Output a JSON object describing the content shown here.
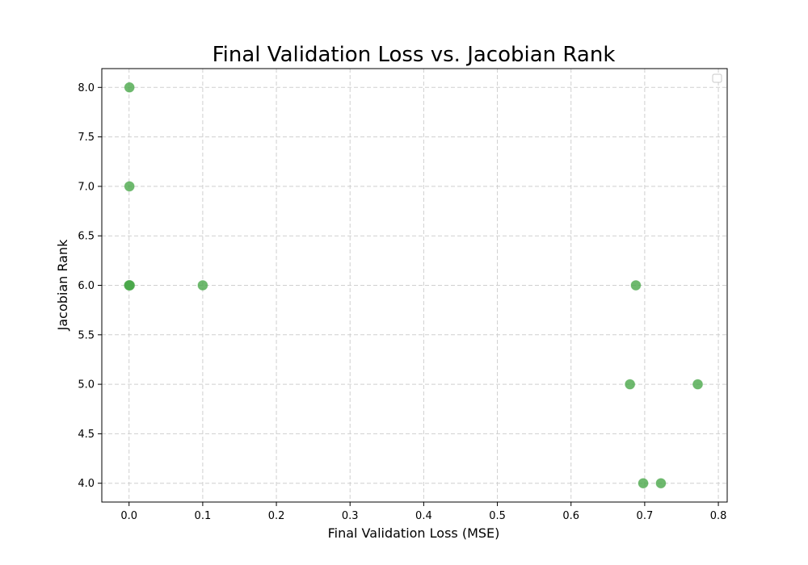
{
  "chart_data": {
    "type": "scatter",
    "title": "Final Validation Loss vs. Jacobian Rank",
    "xlabel": "Final Validation Loss (MSE)",
    "ylabel": "Jacobian Rank",
    "xlim": [
      -0.037,
      0.812
    ],
    "ylim": [
      3.81,
      8.19
    ],
    "xticks": [
      "0.0",
      "0.1",
      "0.2",
      "0.3",
      "0.4",
      "0.5",
      "0.6",
      "0.7",
      "0.8"
    ],
    "yticks": [
      "4.0",
      "4.5",
      "5.0",
      "5.5",
      "6.0",
      "6.5",
      "7.0",
      "7.5",
      "8.0"
    ],
    "grid": true,
    "legend": "upper right (empty)",
    "color": "#4aa84a",
    "points": [
      {
        "x": 0.0005,
        "y": 8.0
      },
      {
        "x": 0.0005,
        "y": 7.0
      },
      {
        "x": 0.0,
        "y": 6.0
      },
      {
        "x": 0.0005,
        "y": 6.0
      },
      {
        "x": 0.001,
        "y": 6.0
      },
      {
        "x": 0.1,
        "y": 6.0
      },
      {
        "x": 0.688,
        "y": 6.0
      },
      {
        "x": 0.68,
        "y": 5.0
      },
      {
        "x": 0.772,
        "y": 5.0
      },
      {
        "x": 0.698,
        "y": 4.0
      },
      {
        "x": 0.722,
        "y": 4.0
      }
    ]
  }
}
